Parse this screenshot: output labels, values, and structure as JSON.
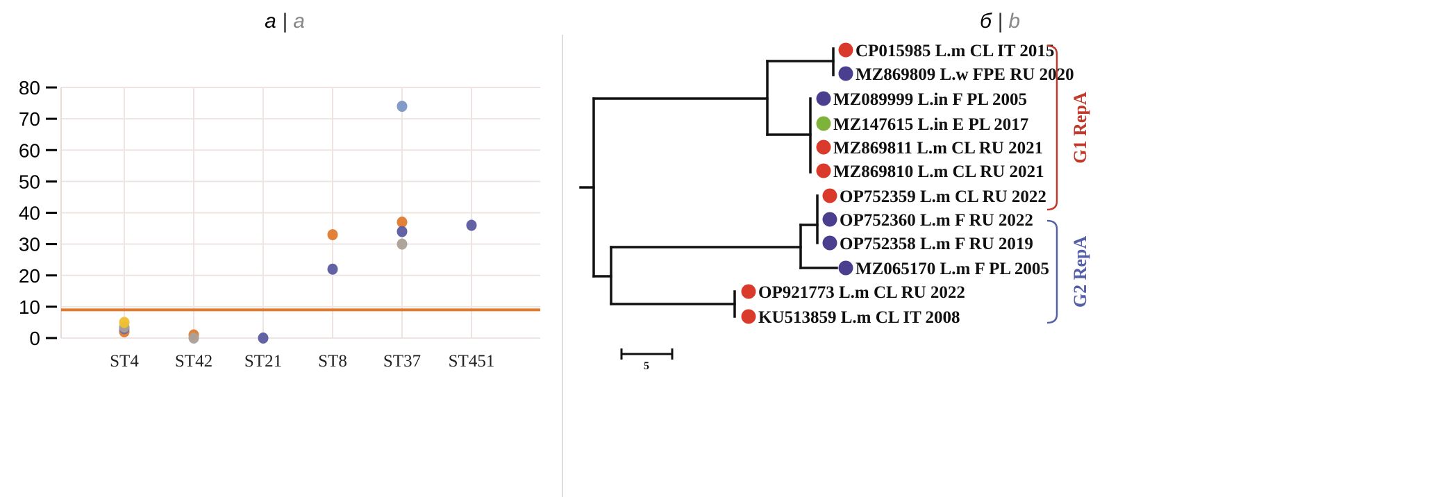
{
  "panel_a": {
    "title_ru": "а",
    "sep": "|",
    "title_en": "a"
  },
  "panel_b": {
    "title_ru": "б",
    "sep": "|",
    "title_en": "b"
  },
  "chart_data": {
    "type": "scatter",
    "categories": [
      "ST4",
      "ST42",
      "ST21",
      "ST8",
      "ST37",
      "ST451"
    ],
    "ylim": [
      0,
      80
    ],
    "yticks": [
      "0",
      "10",
      "20",
      "30",
      "40",
      "50",
      "60",
      "70",
      "80"
    ],
    "grid": true,
    "threshold": {
      "y": 9,
      "color": "#e07a2e"
    },
    "points": [
      {
        "x": "ST4",
        "y": 2,
        "color": "#e07a2e"
      },
      {
        "x": "ST4",
        "y": 3,
        "color": "#6a6aaa"
      },
      {
        "x": "ST4",
        "y": 3.5,
        "color": "#aaa098"
      },
      {
        "x": "ST4",
        "y": 5,
        "color": "#f0c030"
      },
      {
        "x": "ST42",
        "y": 1,
        "color": "#e07a2e"
      },
      {
        "x": "ST42",
        "y": 0,
        "color": "#aaa098"
      },
      {
        "x": "ST21",
        "y": 0,
        "color": "#5a5aa0"
      },
      {
        "x": "ST8",
        "y": 33,
        "color": "#e07a2e"
      },
      {
        "x": "ST8",
        "y": 22,
        "color": "#5a5aa0"
      },
      {
        "x": "ST37",
        "y": 74,
        "color": "#7b96c4"
      },
      {
        "x": "ST37",
        "y": 37,
        "color": "#e07a2e"
      },
      {
        "x": "ST37",
        "y": 34,
        "color": "#5a5aa0"
      },
      {
        "x": "ST37",
        "y": 30,
        "color": "#aaa098"
      },
      {
        "x": "ST451",
        "y": 36,
        "color": "#5a5aa0"
      }
    ]
  },
  "tree": {
    "leaves": [
      {
        "label": "CP015985 L.m CL IT 2015",
        "color": "#d93a2b"
      },
      {
        "label": "MZ869809 L.w FPE RU 2020",
        "color": "#4a3f8f"
      },
      {
        "label": "MZ089999 L.in F PL 2005",
        "color": "#4a3f8f"
      },
      {
        "label": "MZ147615 L.in E PL 2017",
        "color": "#7fb23a"
      },
      {
        "label": "MZ869811 L.m CL RU 2021",
        "color": "#d93a2b"
      },
      {
        "label": "MZ869810 L.m CL RU 2021",
        "color": "#d93a2b"
      },
      {
        "label": "OP752359 L.m CL RU 2022",
        "color": "#d93a2b"
      },
      {
        "label": "OP752360 L.m F RU 2022",
        "color": "#4a3f8f"
      },
      {
        "label": "OP752358 L.m F RU 2019",
        "color": "#4a3f8f"
      },
      {
        "label": "MZ065170 L.m F PL 2005",
        "color": "#4a3f8f"
      },
      {
        "label": "OP921773 L.m CL RU 2022",
        "color": "#d93a2b"
      },
      {
        "label": "KU513859 L.m CL IT 2008",
        "color": "#d93a2b"
      }
    ],
    "clades": [
      {
        "label": "G1 RepA",
        "color": "#c0392b"
      },
      {
        "label": "G2 RepA",
        "color": "#5560a8"
      }
    ],
    "scale_bar": "5"
  }
}
